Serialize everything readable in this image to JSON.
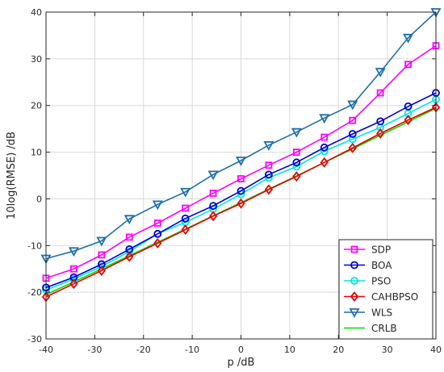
{
  "chart_data": {
    "type": "line",
    "title": "",
    "xlabel": "p /dB",
    "ylabel": "10log(RMSE) /dB",
    "xlim": [
      -40,
      40
    ],
    "ylim": [
      -30,
      40
    ],
    "xticks": [
      -40,
      -30,
      -20,
      -10,
      0,
      10,
      20,
      30,
      40
    ],
    "yticks": [
      -30,
      -20,
      -10,
      0,
      10,
      20,
      30,
      40
    ],
    "grid": true,
    "legend_position": "bottom-right",
    "x": [
      -40,
      -34.3,
      -28.6,
      -22.9,
      -17.1,
      -11.4,
      -5.7,
      0,
      5.7,
      11.4,
      17.1,
      22.9,
      28.6,
      34.3,
      40
    ],
    "series": [
      {
        "name": "SDP",
        "color": "#ff00ff",
        "marker": "square",
        "values": [
          -17.0,
          -15.0,
          -12.0,
          -8.2,
          -5.2,
          -2.0,
          1.2,
          4.3,
          7.2,
          10.0,
          13.2,
          16.8,
          22.7,
          28.8,
          32.8
        ]
      },
      {
        "name": "BOA",
        "color": "#0000cc",
        "marker": "circle",
        "values": [
          -19.0,
          -16.8,
          -14.0,
          -10.8,
          -7.5,
          -4.2,
          -1.5,
          1.7,
          5.2,
          7.8,
          11.0,
          13.9,
          16.6,
          19.8,
          22.7
        ]
      },
      {
        "name": "PSO",
        "color": "#00e6e6",
        "marker": "circle",
        "values": [
          -19.5,
          -17.2,
          -14.5,
          -11.3,
          -7.5,
          -5.0,
          -2.2,
          1.0,
          4.5,
          6.9,
          10.2,
          12.8,
          15.3,
          18.3,
          21.3
        ]
      },
      {
        "name": "CAHBPSO",
        "color": "#e60000",
        "marker": "diamond",
        "values": [
          -21.0,
          -18.2,
          -15.4,
          -12.4,
          -9.5,
          -6.6,
          -3.7,
          -1.0,
          2.0,
          4.8,
          7.8,
          10.9,
          14.0,
          16.9,
          19.6
        ]
      },
      {
        "name": "WLS",
        "color": "#1f6fa8",
        "marker": "triangle-down",
        "values": [
          -12.8,
          -11.2,
          -9.0,
          -4.3,
          -1.2,
          1.5,
          5.2,
          8.2,
          11.5,
          14.3,
          17.3,
          20.2,
          27.2,
          34.5,
          40.0
        ]
      },
      {
        "name": "CRLB",
        "color": "#00dd00",
        "marker": "none",
        "values": [
          -20.5,
          -17.8,
          -15.0,
          -12.2,
          -9.3,
          -6.5,
          -3.6,
          -0.8,
          2.1,
          4.9,
          7.8,
          10.7,
          13.6,
          16.5,
          19.4
        ]
      }
    ]
  }
}
